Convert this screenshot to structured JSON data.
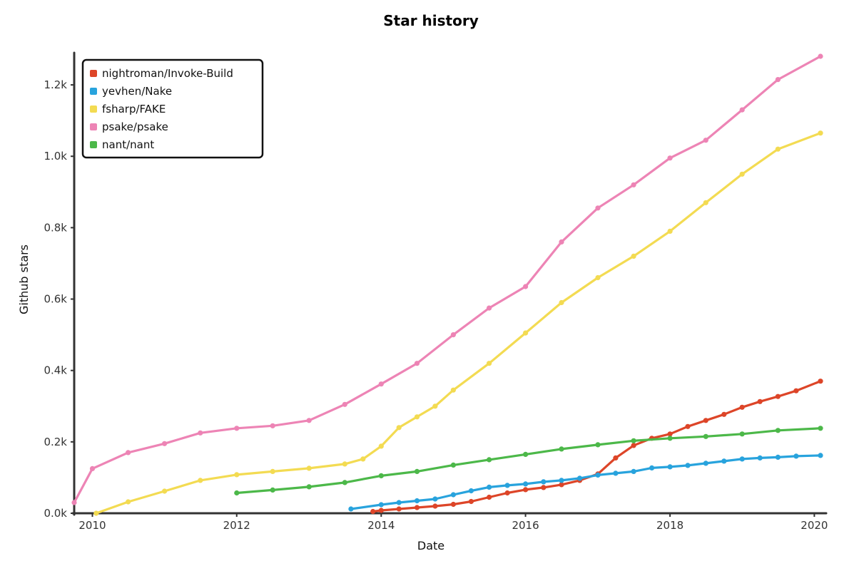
{
  "chart_data": {
    "type": "line",
    "title": "Star history",
    "xlabel": "Date",
    "ylabel": "Github stars",
    "x_axis": {
      "type": "date",
      "range": [
        "2009-10-01",
        "2020-03-01"
      ],
      "ticks": [
        {
          "date": "2010-01-01",
          "label": "2010"
        },
        {
          "date": "2012-01-01",
          "label": "2012"
        },
        {
          "date": "2014-01-01",
          "label": "2014"
        },
        {
          "date": "2016-01-01",
          "label": "2016"
        },
        {
          "date": "2018-01-01",
          "label": "2018"
        },
        {
          "date": "2020-01-01",
          "label": "2020"
        }
      ]
    },
    "y_axis": {
      "range": [
        0,
        1290
      ],
      "ticks": [
        {
          "value": 0,
          "label": "0.0k"
        },
        {
          "value": 200,
          "label": "0.2k"
        },
        {
          "value": 400,
          "label": "0.4k"
        },
        {
          "value": 600,
          "label": "0.6k"
        },
        {
          "value": 800,
          "label": "0.8k"
        },
        {
          "value": 1000,
          "label": "1.0k"
        },
        {
          "value": 1200,
          "label": "1.2k"
        }
      ]
    },
    "grid": false,
    "legend_position": "top-left",
    "series": [
      {
        "name": "nightroman/Invoke-Build",
        "color": "#dd4528",
        "points": [
          [
            "2013-11-20",
            5
          ],
          [
            "2014-01-01",
            8
          ],
          [
            "2014-04-01",
            12
          ],
          [
            "2014-07-01",
            16
          ],
          [
            "2014-10-01",
            20
          ],
          [
            "2015-01-01",
            25
          ],
          [
            "2015-04-01",
            33
          ],
          [
            "2015-07-01",
            45
          ],
          [
            "2015-10-01",
            57
          ],
          [
            "2016-01-01",
            66
          ],
          [
            "2016-04-01",
            72
          ],
          [
            "2016-07-01",
            80
          ],
          [
            "2016-10-01",
            92
          ],
          [
            "2017-01-01",
            110
          ],
          [
            "2017-04-01",
            155
          ],
          [
            "2017-07-01",
            190
          ],
          [
            "2017-10-01",
            210
          ],
          [
            "2018-01-01",
            222
          ],
          [
            "2018-04-01",
            243
          ],
          [
            "2018-07-01",
            260
          ],
          [
            "2018-10-01",
            277
          ],
          [
            "2019-01-01",
            297
          ],
          [
            "2019-04-01",
            313
          ],
          [
            "2019-07-01",
            327
          ],
          [
            "2019-10-01",
            343
          ],
          [
            "2020-02-01",
            370
          ]
        ]
      },
      {
        "name": "yevhen/Nake",
        "color": "#28a3dd",
        "points": [
          [
            "2013-08-01",
            12
          ],
          [
            "2014-01-01",
            24
          ],
          [
            "2014-04-01",
            30
          ],
          [
            "2014-07-01",
            35
          ],
          [
            "2014-10-01",
            40
          ],
          [
            "2015-01-01",
            52
          ],
          [
            "2015-04-01",
            63
          ],
          [
            "2015-07-01",
            73
          ],
          [
            "2015-10-01",
            78
          ],
          [
            "2016-01-01",
            82
          ],
          [
            "2016-04-01",
            88
          ],
          [
            "2016-07-01",
            92
          ],
          [
            "2016-10-01",
            98
          ],
          [
            "2017-01-01",
            107
          ],
          [
            "2017-04-01",
            112
          ],
          [
            "2017-07-01",
            117
          ],
          [
            "2017-10-01",
            127
          ],
          [
            "2018-01-01",
            130
          ],
          [
            "2018-04-01",
            134
          ],
          [
            "2018-07-01",
            140
          ],
          [
            "2018-10-01",
            146
          ],
          [
            "2019-01-01",
            152
          ],
          [
            "2019-04-01",
            155
          ],
          [
            "2019-07-01",
            157
          ],
          [
            "2019-10-01",
            160
          ],
          [
            "2020-02-01",
            162
          ]
        ]
      },
      {
        "name": "fsharp/FAKE",
        "color": "#f3db52",
        "points": [
          [
            "2010-01-20",
            0
          ],
          [
            "2010-07-01",
            32
          ],
          [
            "2011-01-01",
            62
          ],
          [
            "2011-07-01",
            92
          ],
          [
            "2012-01-01",
            108
          ],
          [
            "2012-07-01",
            117
          ],
          [
            "2013-01-01",
            126
          ],
          [
            "2013-07-01",
            138
          ],
          [
            "2013-10-01",
            152
          ],
          [
            "2014-01-01",
            188
          ],
          [
            "2014-04-01",
            240
          ],
          [
            "2014-07-01",
            270
          ],
          [
            "2014-10-01",
            300
          ],
          [
            "2015-01-01",
            345
          ],
          [
            "2015-07-01",
            420
          ],
          [
            "2016-01-01",
            505
          ],
          [
            "2016-07-01",
            590
          ],
          [
            "2017-01-01",
            660
          ],
          [
            "2017-07-01",
            720
          ],
          [
            "2018-01-01",
            790
          ],
          [
            "2018-07-01",
            870
          ],
          [
            "2019-01-01",
            950
          ],
          [
            "2019-07-01",
            1020
          ],
          [
            "2020-02-01",
            1065
          ]
        ]
      },
      {
        "name": "psake/psake",
        "color": "#ed84b5",
        "points": [
          [
            "2009-10-01",
            30
          ],
          [
            "2010-01-01",
            125
          ],
          [
            "2010-07-01",
            170
          ],
          [
            "2011-01-01",
            195
          ],
          [
            "2011-07-01",
            225
          ],
          [
            "2012-01-01",
            238
          ],
          [
            "2012-07-01",
            245
          ],
          [
            "2013-01-01",
            260
          ],
          [
            "2013-07-01",
            305
          ],
          [
            "2014-01-01",
            362
          ],
          [
            "2014-07-01",
            420
          ],
          [
            "2015-01-01",
            500
          ],
          [
            "2015-07-01",
            575
          ],
          [
            "2016-01-01",
            635
          ],
          [
            "2016-07-01",
            760
          ],
          [
            "2017-01-01",
            855
          ],
          [
            "2017-07-01",
            920
          ],
          [
            "2018-01-01",
            995
          ],
          [
            "2018-07-01",
            1045
          ],
          [
            "2019-01-01",
            1130
          ],
          [
            "2019-07-01",
            1215
          ],
          [
            "2020-02-01",
            1280
          ]
        ]
      },
      {
        "name": "nant/nant",
        "color": "#4cb849",
        "points": [
          [
            "2012-01-01",
            57
          ],
          [
            "2012-07-01",
            65
          ],
          [
            "2013-01-01",
            74
          ],
          [
            "2013-07-01",
            86
          ],
          [
            "2014-01-01",
            105
          ],
          [
            "2014-07-01",
            117
          ],
          [
            "2015-01-01",
            135
          ],
          [
            "2015-07-01",
            150
          ],
          [
            "2016-01-01",
            165
          ],
          [
            "2016-07-01",
            180
          ],
          [
            "2017-01-01",
            192
          ],
          [
            "2017-07-01",
            203
          ],
          [
            "2018-01-01",
            210
          ],
          [
            "2018-07-01",
            215
          ],
          [
            "2019-01-01",
            222
          ],
          [
            "2019-07-01",
            232
          ],
          [
            "2020-02-01",
            238
          ]
        ]
      }
    ]
  }
}
